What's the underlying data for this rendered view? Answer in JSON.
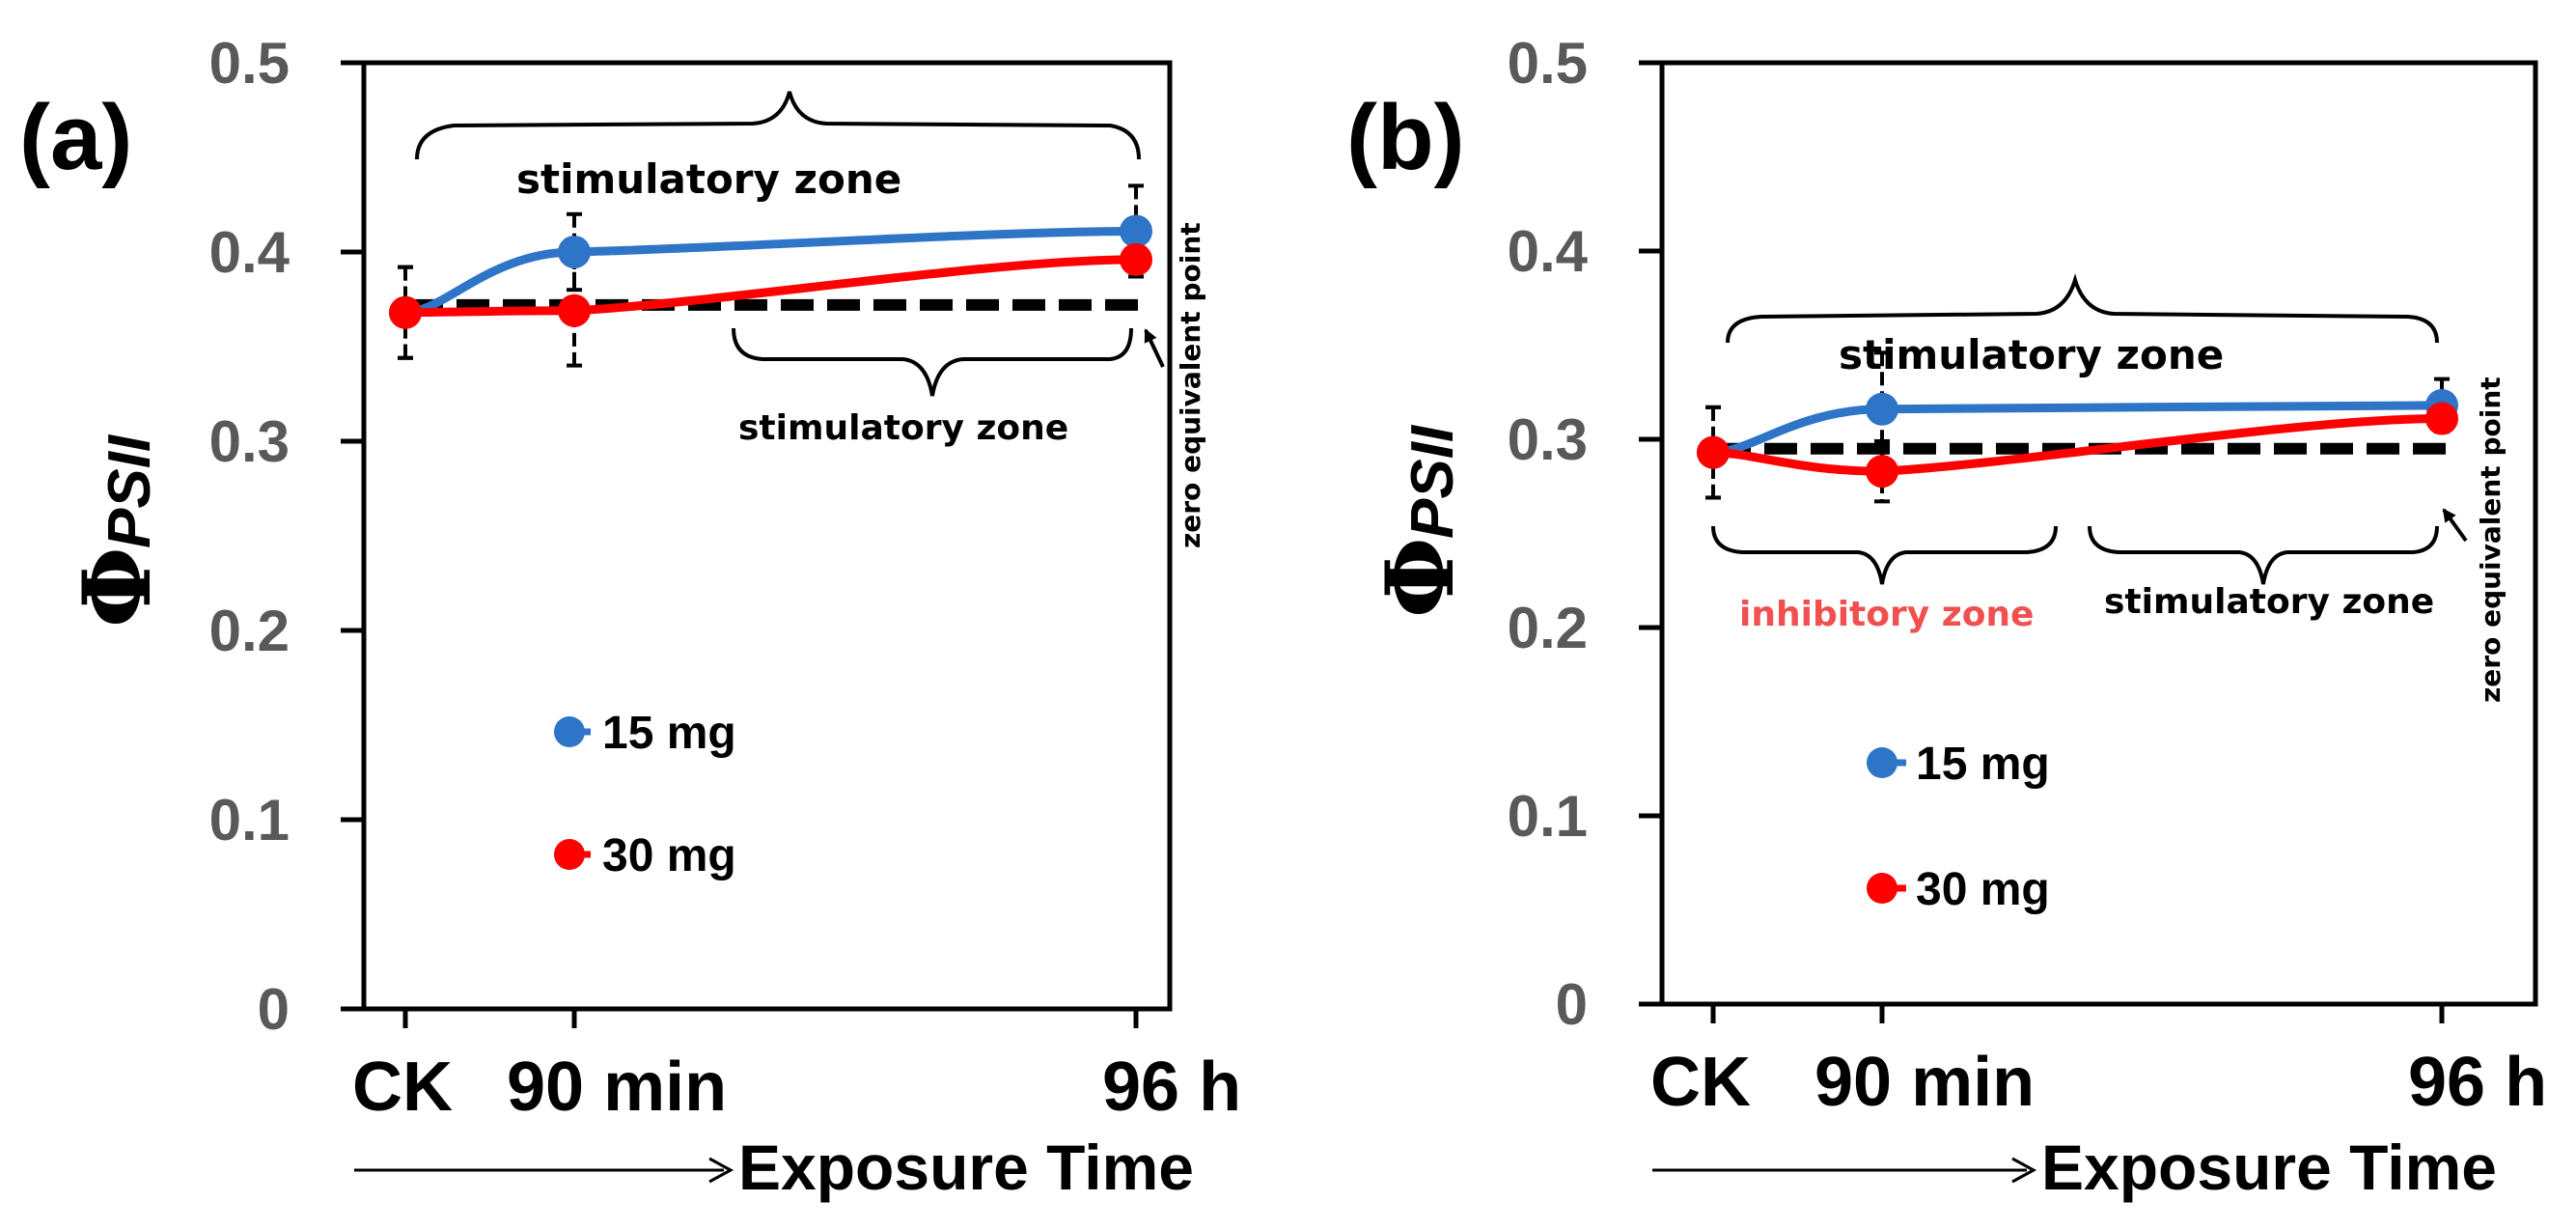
{
  "chart_data": [
    {
      "type": "line",
      "panel_label": "(a)",
      "ylabel_symbol": "Φ",
      "ylabel_subscript": "PSII",
      "xlabel": "Exposure Time",
      "ylim": [
        0,
        0.5
      ],
      "yticks": [
        "0",
        "0.1",
        "0.2",
        "0.3",
        "0.4",
        "0.5"
      ],
      "categories": [
        "CK",
        "90 min",
        "96 h"
      ],
      "series": [
        {
          "name": "15 mg",
          "color": "#2e75c8",
          "values": [
            0.368,
            0.4,
            0.411
          ],
          "errors": [
            0.024,
            0.02,
            0.024
          ]
        },
        {
          "name": "30 mg",
          "color": "#ff0000",
          "values": [
            0.368,
            0.369,
            0.396
          ],
          "errors": [
            0.024,
            0.029,
            0.0
          ]
        }
      ],
      "baseline": 0.372,
      "annotations": {
        "upper_zone": "stimulatory zone",
        "lower_zone": "stimulatory zone",
        "zero_point": "zero equivalent point"
      }
    },
    {
      "type": "line",
      "panel_label": "(b)",
      "ylabel_symbol": "Φ",
      "ylabel_subscript": "PSII",
      "xlabel": "Exposure Time",
      "ylim": [
        0,
        0.5
      ],
      "yticks": [
        "0",
        "0.1",
        "0.2",
        "0.3",
        "0.4",
        "0.5"
      ],
      "categories": [
        "CK",
        "90 min",
        "96 h"
      ],
      "series": [
        {
          "name": "15 mg",
          "color": "#2e75c8",
          "values": [
            0.293,
            0.316,
            0.318
          ],
          "errors": [
            0.024,
            0.03,
            0.014
          ]
        },
        {
          "name": "30 mg",
          "color": "#ff0000",
          "values": [
            0.293,
            0.283,
            0.311
          ],
          "errors": [
            0.024,
            0.016,
            0.0
          ]
        }
      ],
      "baseline": 0.295,
      "annotations": {
        "upper_zone": "stimulatory zone",
        "left_zone": "inhibitory zone",
        "right_zone": "stimulatory zone",
        "zero_point": "zero equivalent point"
      }
    }
  ]
}
